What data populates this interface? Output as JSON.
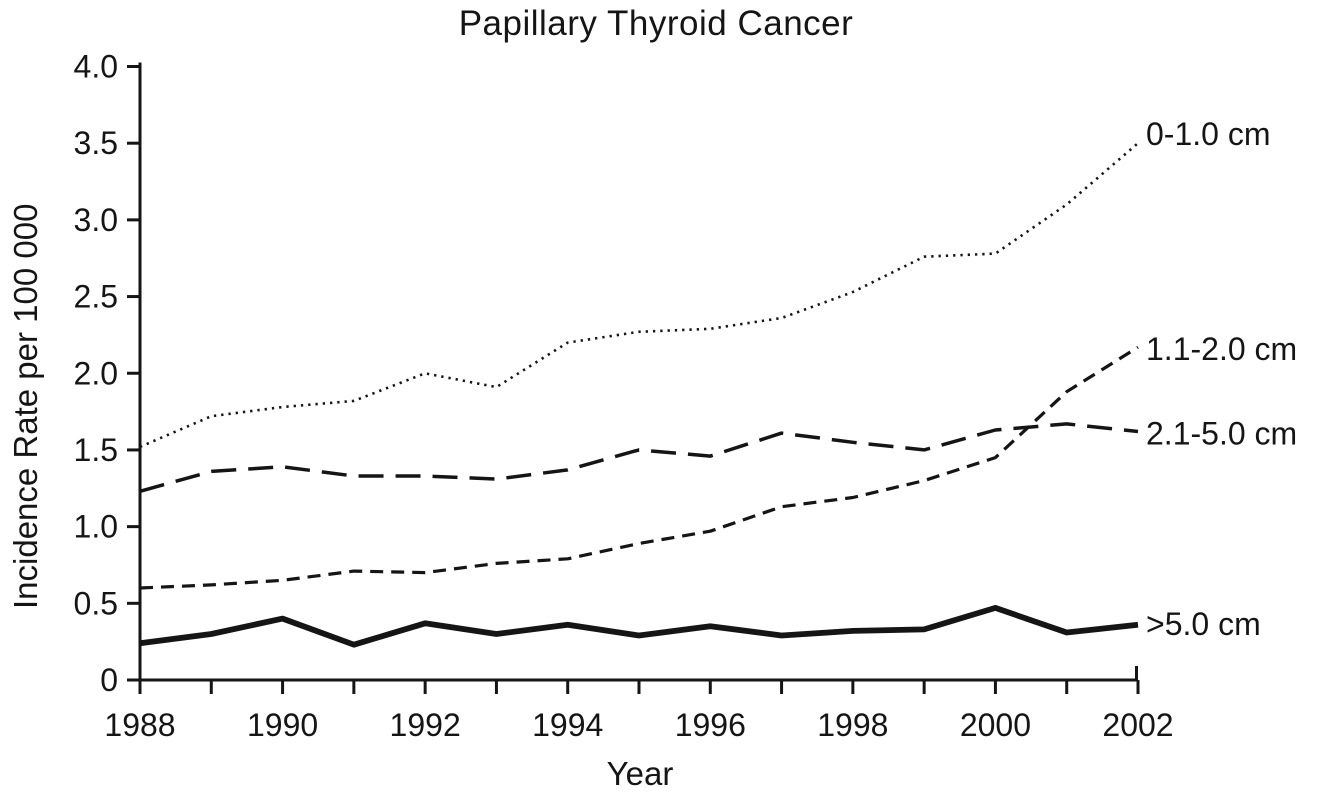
{
  "chart_data": {
    "type": "line",
    "title": "Papillary Thyroid Cancer",
    "xlabel": "Year",
    "ylabel": "Incidence Rate per 100 000",
    "x": [
      1988,
      1989,
      1990,
      1991,
      1992,
      1993,
      1994,
      1995,
      1996,
      1997,
      1998,
      1999,
      2000,
      2001,
      2002
    ],
    "xlim": [
      1988,
      2002
    ],
    "ylim": [
      0,
      4.0
    ],
    "x_tick_interval_years": 1,
    "x_tick_labels": [
      "1988",
      "1990",
      "1992",
      "1994",
      "1996",
      "1998",
      "2000",
      "2002"
    ],
    "y_ticks": [
      0,
      0.5,
      1.0,
      1.5,
      2.0,
      2.5,
      3.0,
      3.5,
      4.0
    ],
    "y_tick_labels": [
      "0",
      "0.5",
      "1.0",
      "1.5",
      "2.0",
      "2.5",
      "3.0",
      "3.5",
      "4.0"
    ],
    "grid": false,
    "legend_position": "inline-labels-at-line-ends",
    "ink_color": "#151515",
    "background_color": "#ffffff",
    "series": [
      {
        "name": "0-1.0 cm",
        "line_style": "dotted",
        "values": [
          1.52,
          1.72,
          1.78,
          1.82,
          2.0,
          1.91,
          2.2,
          2.27,
          2.29,
          2.36,
          2.53,
          2.76,
          2.78,
          3.1,
          3.5
        ]
      },
      {
        "name": "1.1-2.0 cm",
        "line_style": "dashed-short",
        "values": [
          0.6,
          0.62,
          0.65,
          0.71,
          0.7,
          0.76,
          0.79,
          0.89,
          0.97,
          1.13,
          1.19,
          1.3,
          1.45,
          1.88,
          2.17
        ]
      },
      {
        "name": "2.1-5.0 cm",
        "line_style": "dashed-long",
        "values": [
          1.23,
          1.36,
          1.39,
          1.33,
          1.33,
          1.31,
          1.37,
          1.5,
          1.46,
          1.61,
          1.55,
          1.5,
          1.63,
          1.67,
          1.62
        ]
      },
      {
        "name": ">5.0 cm",
        "line_style": "solid-thick",
        "values": [
          0.24,
          0.3,
          0.4,
          0.23,
          0.37,
          0.3,
          0.36,
          0.29,
          0.35,
          0.29,
          0.32,
          0.33,
          0.47,
          0.31,
          0.36
        ]
      }
    ]
  }
}
